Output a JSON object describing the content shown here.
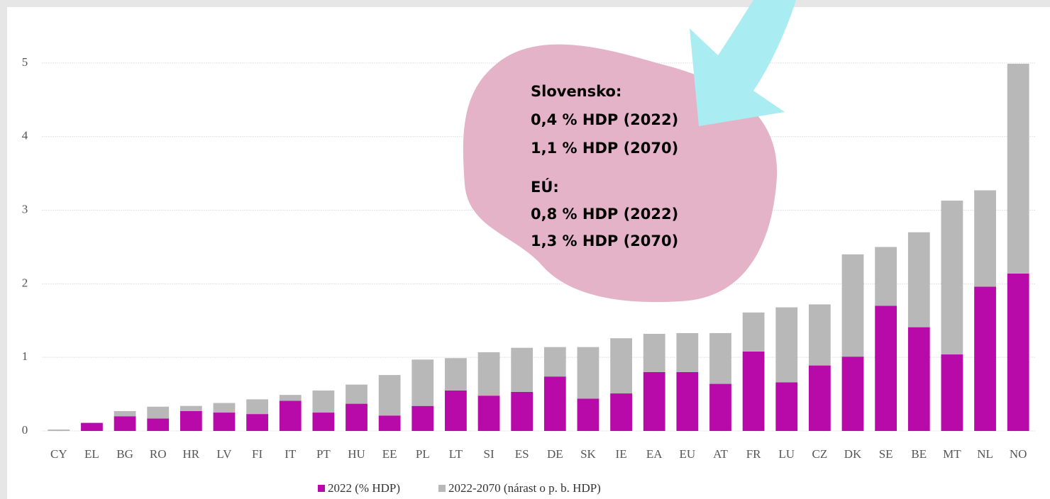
{
  "chart_data": {
    "type": "bar",
    "stacked": true,
    "categories": [
      "CY",
      "EL",
      "BG",
      "RO",
      "HR",
      "LV",
      "FI",
      "IT",
      "PT",
      "HU",
      "EE",
      "PL",
      "LT",
      "SI",
      "ES",
      "DE",
      "SK",
      "IE",
      "EA",
      "EU",
      "AT",
      "FR",
      "LU",
      "CZ",
      "DK",
      "SE",
      "BE",
      "MT",
      "NL",
      "NO"
    ],
    "series": [
      {
        "name": "2022 (% HDP)",
        "color": "#b80aa8",
        "values": [
          0,
          0.11,
          0.2,
          0.17,
          0.27,
          0.25,
          0.23,
          0.41,
          0.25,
          0.37,
          0.21,
          0.34,
          0.55,
          0.48,
          0.53,
          0.74,
          0.44,
          0.51,
          0.8,
          0.8,
          0.64,
          1.08,
          0.66,
          0.89,
          1.01,
          1.7,
          1.41,
          1.04,
          1.96,
          2.14
        ]
      },
      {
        "name": "2022-2070 (nárast o p. b. HDP)",
        "color": "#b8b8b8",
        "values": [
          0.02,
          0,
          0.07,
          0.16,
          0.07,
          0.13,
          0.2,
          0.08,
          0.3,
          0.26,
          0.55,
          0.63,
          0.44,
          0.59,
          0.6,
          0.4,
          0.7,
          0.75,
          0.52,
          0.53,
          0.69,
          0.53,
          1.02,
          0.83,
          1.39,
          0.8,
          1.29,
          2.09,
          1.31,
          2.85
        ]
      }
    ],
    "ylim": [
      0,
      5.5
    ],
    "yticks": [
      0,
      1,
      2,
      3,
      4,
      5
    ],
    "grid": true,
    "legend": "bottom",
    "annotations": [
      "Slovensko:",
      "0,4 % HDP (2022)",
      "1,1 % HDP (2070)",
      "EÚ:",
      "0,8 % HDP (2022)",
      "1,3 % HDP (2070)"
    ]
  }
}
